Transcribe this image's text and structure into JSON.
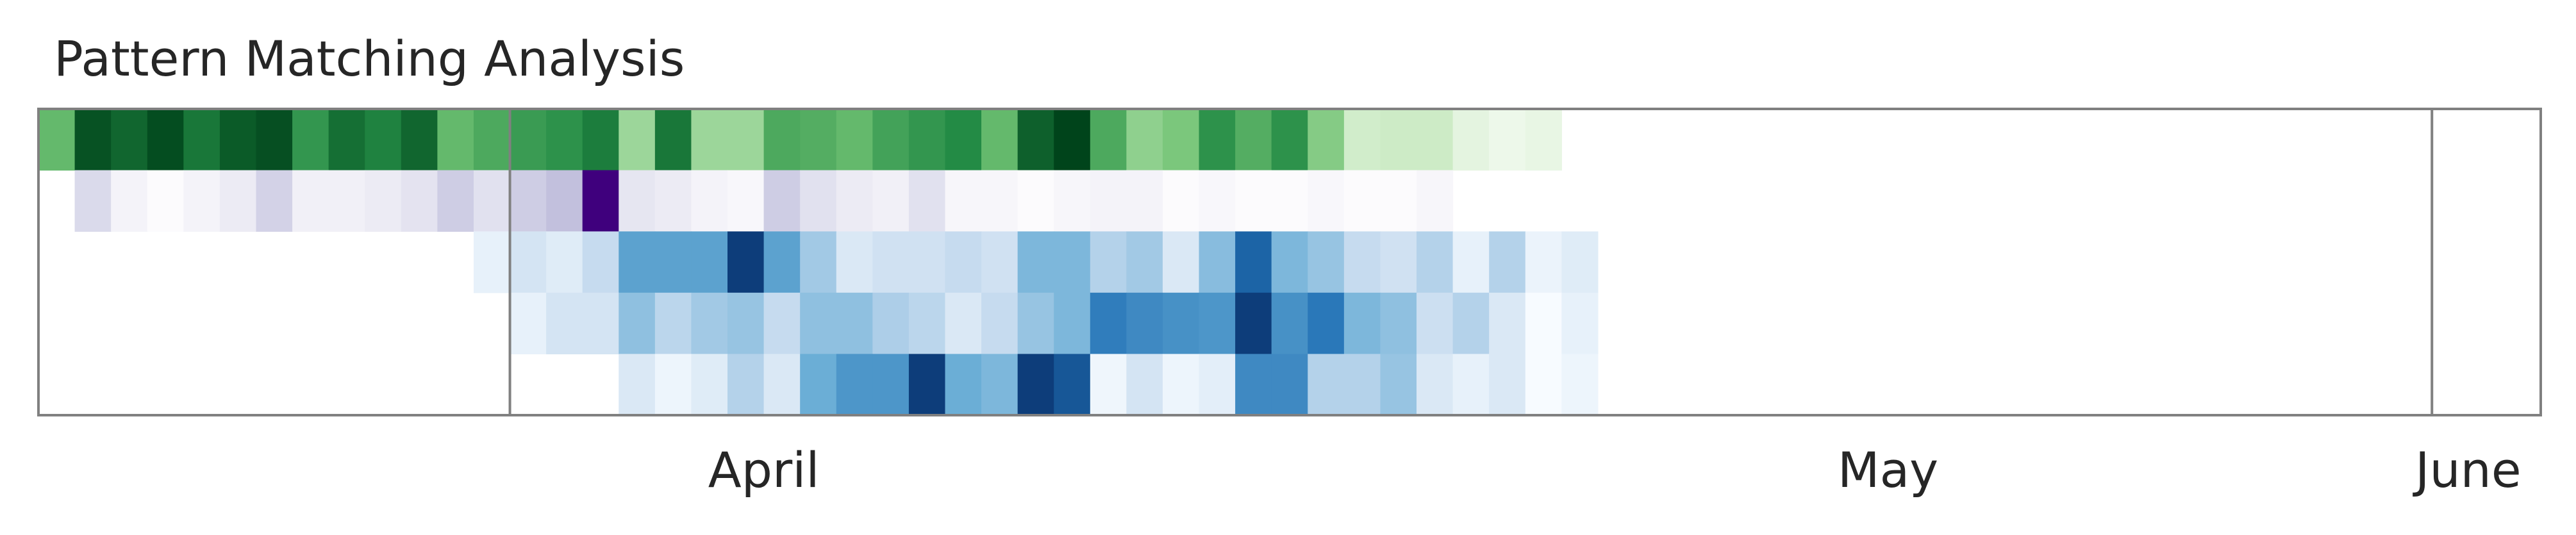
{
  "chart_data": {
    "type": "heatmap",
    "title": "Pattern Matching Analysis",
    "x_start": "2024-03-26",
    "x_end": "2024-06-03",
    "month_labels": [
      {
        "label": "April",
        "date": "2024-04-15"
      },
      {
        "label": "May",
        "date": "2024-05-16"
      },
      {
        "label": "June",
        "date": "2024-06-01"
      }
    ],
    "month_dividers": [
      "2024-04-08",
      "2024-05-31"
    ],
    "rows": [
      {
        "palette": "green",
        "start": "2024-03-26",
        "values": [
          0.55,
          0.95,
          0.88,
          0.97,
          0.82,
          0.92,
          0.96,
          0.7,
          0.85,
          0.78,
          0.88,
          0.55,
          0.62,
          0.68,
          0.72,
          0.8,
          0.38,
          0.82,
          0.38,
          0.38,
          0.62,
          0.6,
          0.55,
          0.65,
          0.7,
          0.75,
          0.55,
          0.9,
          1.0,
          0.62,
          0.42,
          0.48,
          0.72,
          0.6,
          0.72,
          0.45,
          0.2,
          0.22,
          0.22,
          0.1,
          0.05,
          0.08
        ]
      },
      {
        "palette": "purple",
        "start": "2024-03-27",
        "values": [
          0.25,
          0.06,
          0.0,
          0.06,
          0.12,
          0.28,
          0.08,
          0.08,
          0.12,
          0.18,
          0.3,
          0.2,
          0.3,
          0.35,
          1.0,
          0.16,
          0.12,
          0.06,
          0.03,
          0.3,
          0.2,
          0.12,
          0.08,
          0.2,
          0.04,
          0.04,
          0.0,
          0.04,
          0.06,
          0.06,
          0.0,
          0.03,
          0.0,
          0.0,
          0.03,
          0.0,
          0.0,
          0.04
        ]
      },
      {
        "palette": "blue",
        "start": "2024-04-07",
        "values": [
          0.08,
          0.18,
          0.12,
          0.25,
          0.55,
          0.55,
          0.55,
          0.95,
          0.55,
          0.35,
          0.15,
          0.2,
          0.2,
          0.25,
          0.2,
          0.45,
          0.45,
          0.3,
          0.35,
          0.15,
          0.42,
          0.8,
          0.45,
          0.38,
          0.25,
          0.2,
          0.3,
          0.08,
          0.3,
          0.06,
          0.12
        ]
      },
      {
        "palette": "blue",
        "start": "2024-04-08",
        "values": [
          0.08,
          0.18,
          0.18,
          0.4,
          0.28,
          0.35,
          0.38,
          0.25,
          0.4,
          0.4,
          0.32,
          0.28,
          0.15,
          0.25,
          0.38,
          0.45,
          0.7,
          0.65,
          0.62,
          0.6,
          0.95,
          0.62,
          0.72,
          0.45,
          0.4,
          0.22,
          0.3,
          0.15,
          0.0,
          0.08
        ]
      },
      {
        "palette": "blue",
        "start": "2024-04-11",
        "values": [
          0.15,
          0.05,
          0.12,
          0.3,
          0.15,
          0.5,
          0.6,
          0.6,
          0.95,
          0.5,
          0.45,
          0.95,
          0.85,
          0.04,
          0.18,
          0.05,
          0.1,
          0.65,
          0.65,
          0.3,
          0.3,
          0.38,
          0.15,
          0.08,
          0.15,
          0.0,
          0.05
        ]
      }
    ]
  }
}
